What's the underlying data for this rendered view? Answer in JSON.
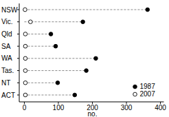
{
  "chart_data": {
    "type": "dot",
    "orientation": "horizontal",
    "categories": [
      "NSW",
      "Vic.",
      "Qld",
      "SA",
      "WA",
      "Tas.",
      "NT",
      "ACT"
    ],
    "series": [
      {
        "name": "1987",
        "color": "#000000",
        "marker": "filled",
        "values": [
          362,
          172,
          78,
          92,
          210,
          182,
          98,
          148
        ]
      },
      {
        "name": "2007",
        "color": "#000000",
        "marker": "open",
        "values": [
          2,
          18,
          3,
          3,
          3,
          3,
          3,
          3
        ]
      }
    ],
    "x_label": "no.",
    "xlim": [
      -15,
      410
    ],
    "xticks": [
      0,
      100,
      200,
      300,
      400
    ],
    "line_style": "dashed",
    "legend": "lower right",
    "grid": false
  }
}
